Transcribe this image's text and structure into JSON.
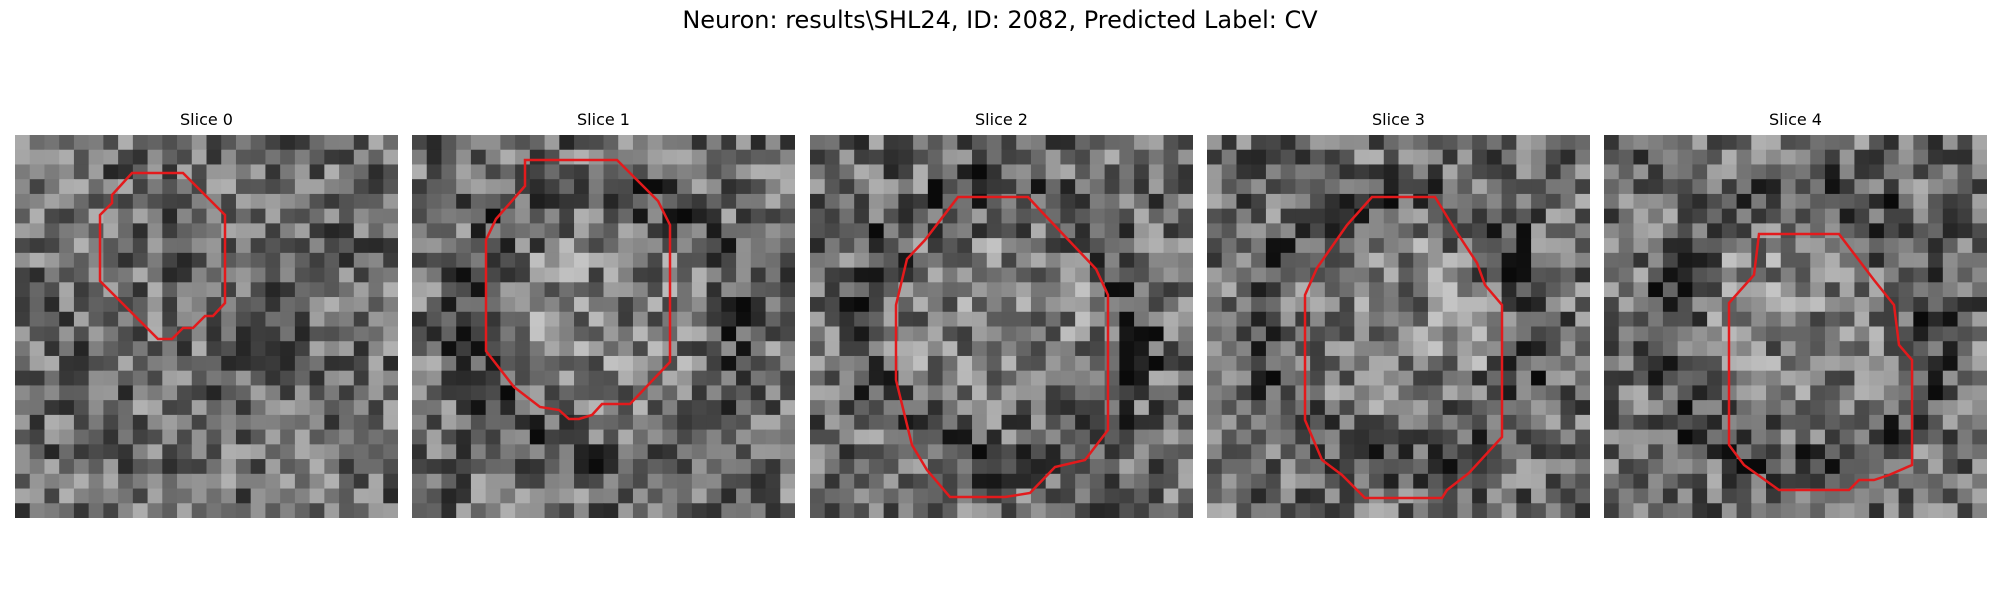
{
  "figure": {
    "title": "Neuron: results\\SHL24, ID: 2082, Predicted Label: CV",
    "contour_color": "#e31a1c"
  },
  "slices": [
    {
      "title": "Slice 0"
    },
    {
      "title": "Slice 1"
    },
    {
      "title": "Slice 2"
    },
    {
      "title": "Slice 3"
    },
    {
      "title": "Slice 4"
    }
  ]
}
